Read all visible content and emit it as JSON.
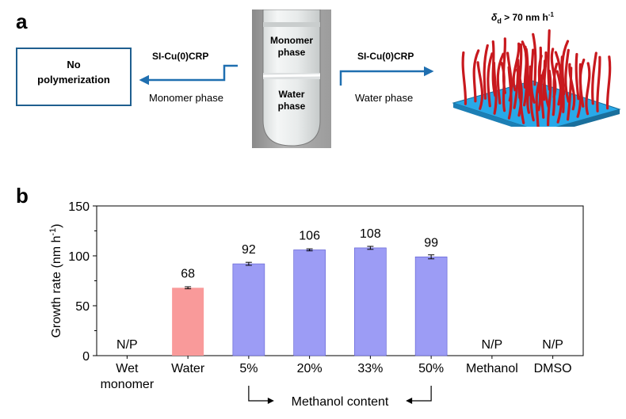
{
  "panel_a": {
    "letter": "a",
    "left_box": {
      "line1": "No",
      "line2": "polymerization"
    },
    "left_arrow": {
      "label": "SI-Cu(0)CRP",
      "sublabel": "Monomer phase"
    },
    "right_arrow": {
      "label": "SI-Cu(0)CRP",
      "sublabel": "Water phase"
    },
    "vial": {
      "top_phase_line1": "Monomer",
      "top_phase_line2": "phase",
      "bottom_phase_line1": "Water",
      "bottom_phase_line2": "phase"
    },
    "brush_label": {
      "delta": "δ",
      "sub": "d",
      "rest": " > 70 nm h",
      "sup": "-1"
    },
    "colors": {
      "arrow": "#1f6fb0",
      "brush": "#c8191e",
      "surface": "#29a9e8"
    }
  },
  "panel_b": {
    "letter": "b",
    "chart_data": {
      "type": "bar",
      "categories": [
        "Wet monomer",
        "Water",
        "5%",
        "20%",
        "33%",
        "50%",
        "Methanol",
        "DMSO"
      ],
      "category_lines": [
        [
          "Wet",
          "monomer"
        ],
        [
          "Water"
        ],
        [
          "5%"
        ],
        [
          "20%"
        ],
        [
          "33%"
        ],
        [
          "50%"
        ],
        [
          "Methanol"
        ],
        [
          "DMSO"
        ]
      ],
      "values": [
        null,
        68,
        92,
        106,
        108,
        99,
        null,
        null
      ],
      "errors": [
        0,
        1,
        1.5,
        1,
        1.5,
        2,
        0,
        0
      ],
      "value_labels": [
        "N/P",
        "68",
        "92",
        "106",
        "108",
        "99",
        "N/P",
        "N/P"
      ],
      "bar_colors": [
        "",
        "#f99a9a",
        "#9c9cf5",
        "#9c9cf5",
        "#9c9cf5",
        "#9c9cf5",
        "",
        ""
      ],
      "ylabel_main": "Growth rate (nm h",
      "ylabel_sup": "-1",
      "ylabel_end": ")",
      "ylim": [
        0,
        150
      ],
      "yticks": [
        0,
        50,
        100,
        150
      ],
      "bracket_label": "Methanol content"
    }
  }
}
